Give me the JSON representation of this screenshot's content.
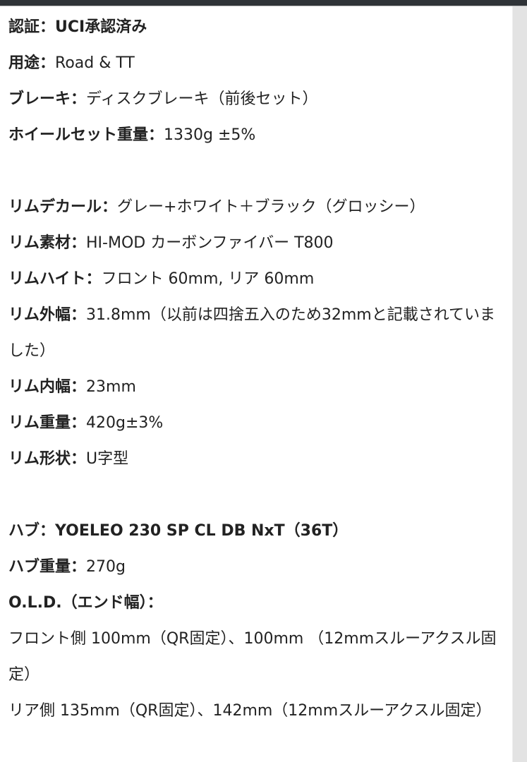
{
  "groups": [
    [
      {
        "label": "認証：",
        "value": "UCI承認済み",
        "all_bold": true
      },
      {
        "label": "用途：",
        "value": "Road & TT"
      },
      {
        "label": "ブレーキ：",
        "value": "ディスクブレーキ（前後セット）"
      },
      {
        "label": "ホイールセット重量：",
        "value": "1330g ±5%"
      }
    ],
    [
      {
        "label": "リムデカール：",
        "value": "グレー+ホワイト＋ブラック（グロッシー）"
      },
      {
        "label": "リム素材：",
        "value": "HI-MOD カーボンファイバー T800"
      },
      {
        "label": "リムハイト：",
        "value": "フロント 60mm, リア 60mm"
      },
      {
        "label": "リム外幅：",
        "value": "31.8mm（以前は四捨五入のため32mmと記載されていました）"
      },
      {
        "label": "リム内幅：",
        "value": "23mm"
      },
      {
        "label": "リム重量：",
        "value": "420g±3%"
      },
      {
        "label": "リム形状：",
        "value": "U字型"
      }
    ],
    [
      {
        "label": "ハブ：",
        "value": "YOELEO 230 SP CL DB NxT（36T）",
        "all_bold": true
      },
      {
        "label": "ハブ重量：",
        "value": "270g"
      },
      {
        "label": "O.L.D.（エンド幅）：",
        "value": ""
      },
      {
        "label": "",
        "value": "フロント側 100mm（QR固定）、100mm （12mmスルーアクスル固定）"
      },
      {
        "label": "",
        "value": "リア側 135mm（QR固定）、142mm（12mmスルーアクスル固定）"
      }
    ]
  ]
}
